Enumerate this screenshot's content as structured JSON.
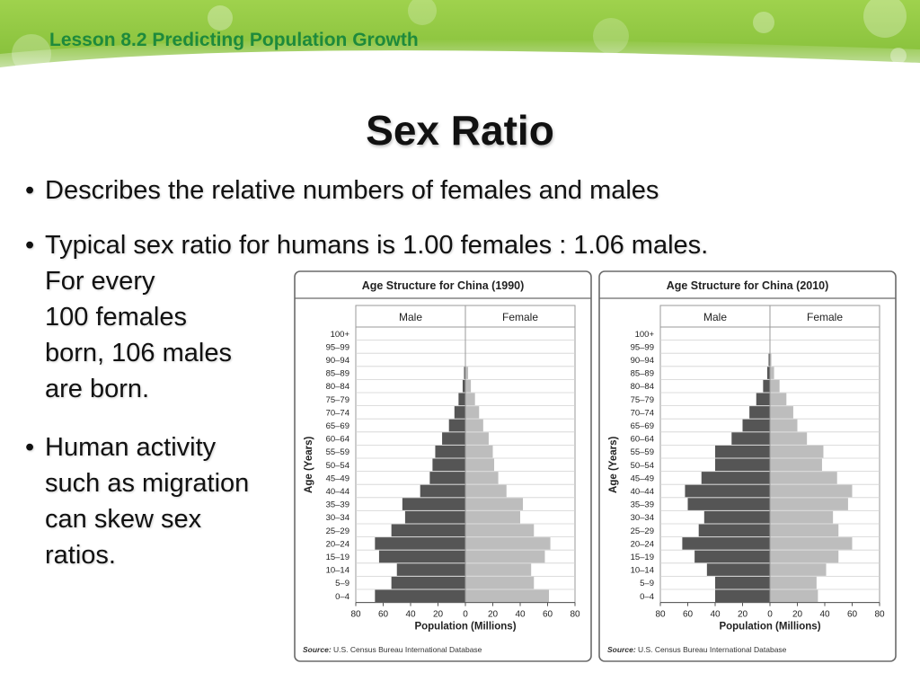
{
  "header": {
    "lesson": "Lesson 8.2 Predicting Population Growth"
  },
  "slide": {
    "title": "Sex Ratio",
    "bullets": [
      {
        "lines": [
          "Describes the relative numbers of females and males"
        ]
      },
      {
        "lines": [
          "Typical sex ratio for humans is 1.00 females : 1.06 males.",
          "For every",
          "100 females",
          "born, 106 males",
          "are born."
        ]
      },
      {
        "lines": [
          "Human activity",
          "such as migration",
          "can skew sex",
          "ratios."
        ]
      }
    ]
  },
  "colors": {
    "male": "#555555",
    "female": "#bdbdbd",
    "lesson_text": "#1e8a3c",
    "banner": "#8cc63f"
  },
  "chart_data": [
    {
      "type": "bar",
      "orientation": "horizontal-pyramid",
      "title": "Age Structure for China (1990)",
      "xlabel": "Population (Millions)",
      "ylabel": "Age (Years)",
      "xlim": [
        -80,
        80
      ],
      "xticks": [
        "80",
        "60",
        "40",
        "20",
        "0",
        "20",
        "40",
        "60",
        "80"
      ],
      "categories": [
        "100+",
        "95–99",
        "90–94",
        "85–89",
        "80–84",
        "75–79",
        "70–74",
        "65–69",
        "60–64",
        "55–59",
        "50–54",
        "45–49",
        "40–44",
        "35–39",
        "30–34",
        "25–29",
        "20–24",
        "15–19",
        "10–14",
        "5–9",
        "0–4"
      ],
      "series": [
        {
          "name": "Male",
          "values": [
            0,
            0,
            0,
            1,
            2,
            5,
            8,
            12,
            17,
            22,
            24,
            26,
            33,
            46,
            44,
            54,
            66,
            63,
            50,
            54,
            66
          ]
        },
        {
          "name": "Female",
          "values": [
            0,
            0,
            0,
            2,
            4,
            7,
            10,
            13,
            17,
            20,
            21,
            24,
            30,
            42,
            40,
            50,
            62,
            58,
            48,
            50,
            61
          ]
        }
      ],
      "source_label": "Source:",
      "source": "U.S. Census Bureau International Database",
      "grid": true
    },
    {
      "type": "bar",
      "orientation": "horizontal-pyramid",
      "title": "Age Structure for China (2010)",
      "xlabel": "Population (Millions)",
      "ylabel": "Age (Years)",
      "xlim": [
        -80,
        80
      ],
      "xticks": [
        "80",
        "60",
        "40",
        "20",
        "0",
        "20",
        "40",
        "60",
        "80"
      ],
      "categories": [
        "100+",
        "95–99",
        "90–94",
        "85–89",
        "80–84",
        "75–79",
        "70–74",
        "65–69",
        "60–64",
        "55–59",
        "50–54",
        "45–49",
        "40–44",
        "35–39",
        "30–34",
        "25–29",
        "20–24",
        "15–19",
        "10–14",
        "5–9",
        "0–4"
      ],
      "series": [
        {
          "name": "Male",
          "values": [
            0,
            0,
            1,
            2,
            5,
            10,
            15,
            20,
            28,
            40,
            40,
            50,
            62,
            60,
            48,
            52,
            64,
            55,
            46,
            40,
            40
          ]
        },
        {
          "name": "Female",
          "values": [
            0,
            0,
            1,
            3,
            7,
            12,
            17,
            20,
            27,
            39,
            38,
            49,
            60,
            57,
            46,
            50,
            60,
            50,
            41,
            34,
            35
          ]
        }
      ],
      "source_label": "Source:",
      "source": "U.S. Census Bureau International Database",
      "grid": true
    }
  ]
}
